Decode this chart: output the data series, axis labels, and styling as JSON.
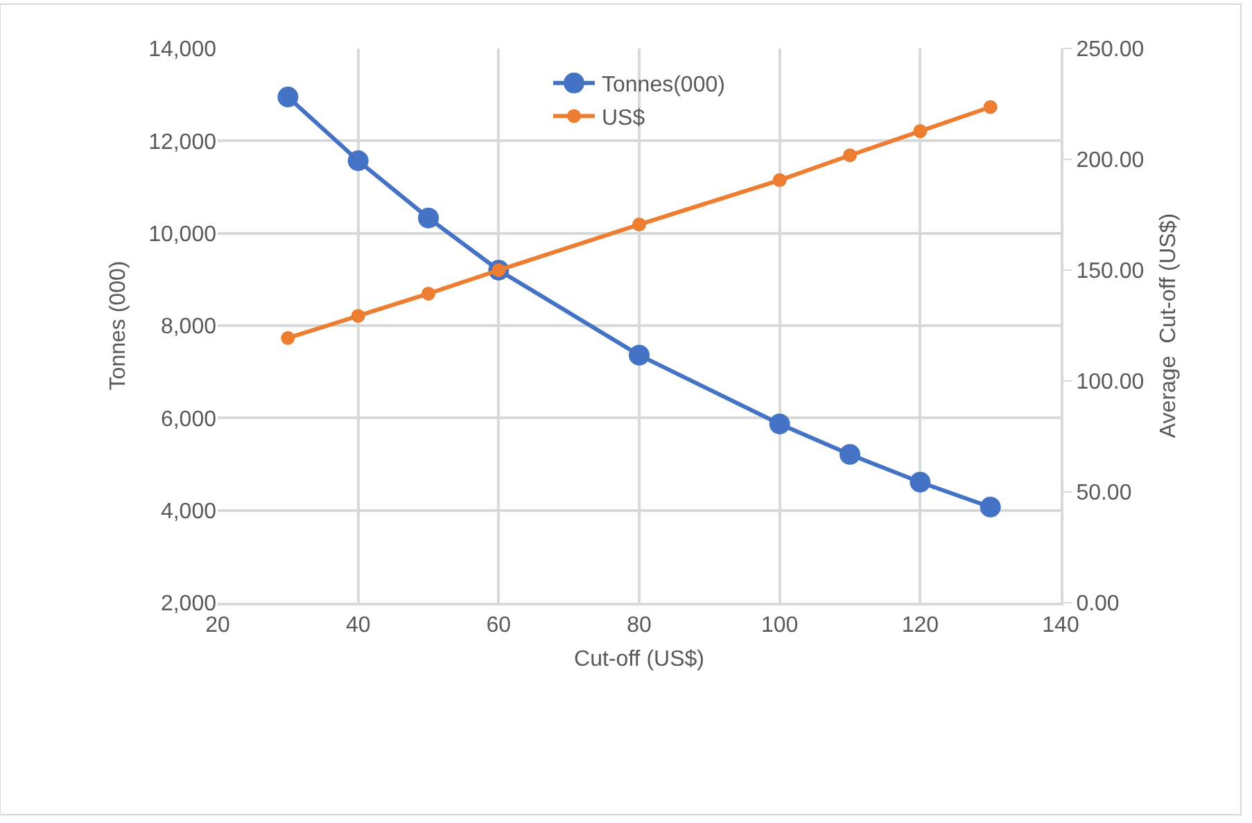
{
  "chart_data": {
    "type": "line",
    "xlabel": "Cut-off (US$)",
    "ylabel": "Tonnes (000)",
    "y2label": "Average  Cut-off (US$)",
    "x": [
      30,
      40,
      50,
      60,
      80,
      100,
      110,
      120,
      130
    ],
    "series": [
      {
        "name": "Tonnes(000)",
        "color": "#4472c4",
        "values": [
          12950,
          11570,
          10330,
          9200,
          7360,
          5870,
          5210,
          4610,
          4070
        ]
      },
      {
        "name": "US$",
        "color": "#ed7d31",
        "axis": "y2",
        "values": [
          119.4,
          129.4,
          139.4,
          150.0,
          170.6,
          190.6,
          201.8,
          212.7,
          223.6
        ]
      }
    ],
    "xlim": [
      20,
      140
    ],
    "xticks": [
      20,
      40,
      60,
      80,
      100,
      120,
      140
    ],
    "ylim": [
      2000,
      14000
    ],
    "yticks": [
      {
        "value": 2000,
        "label": "2,000"
      },
      {
        "value": 4000,
        "label": "4,000"
      },
      {
        "value": 6000,
        "label": "6,000"
      },
      {
        "value": 8000,
        "label": "8,000"
      },
      {
        "value": 10000,
        "label": "10,000"
      },
      {
        "value": 12000,
        "label": "12,000"
      },
      {
        "value": 14000,
        "label": "14,000"
      }
    ],
    "y2lim": [
      0,
      250
    ],
    "y2ticks": [
      {
        "value": 0,
        "label": "0.00"
      },
      {
        "value": 50,
        "label": "50.00"
      },
      {
        "value": 100,
        "label": "100.00"
      },
      {
        "value": 150,
        "label": "150.00"
      },
      {
        "value": 200,
        "label": "200.00"
      },
      {
        "value": 250,
        "label": "250.00"
      }
    ],
    "grid": true,
    "legend": "top",
    "marker": "circle",
    "line_style": "solid"
  }
}
